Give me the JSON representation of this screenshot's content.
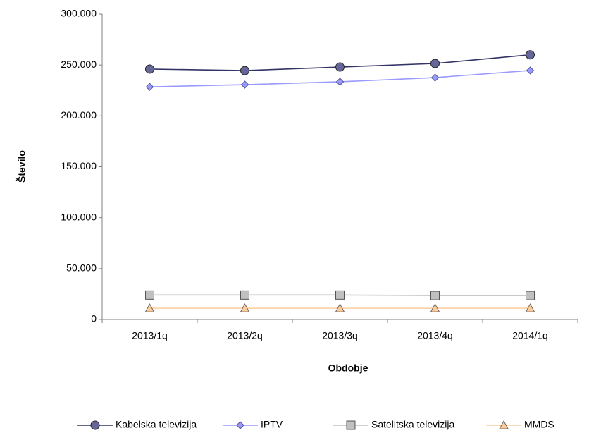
{
  "chart_data": {
    "type": "line",
    "y_label": "Število",
    "x_label": "Obdobje",
    "categories": [
      "2013/1q",
      "2013/2q",
      "2013/3q",
      "2013/4q",
      "2014/1q"
    ],
    "series": [
      {
        "name": "Kabelska televizija",
        "color": "#333366",
        "marker": "circle",
        "marker_color": "#666699",
        "values": [
          246000,
          244500,
          248000,
          251500,
          260000
        ]
      },
      {
        "name": "IPTV",
        "color": "#9999ff",
        "marker": "diamond",
        "marker_color": "#9999ff",
        "values": [
          228500,
          230700,
          233500,
          237600,
          244600
        ]
      },
      {
        "name": "Satelitska televizija",
        "color": "#c0c0c0",
        "marker": "square",
        "marker_color": "#c0c0c0",
        "values": [
          24000,
          24000,
          24000,
          23500,
          23500
        ]
      },
      {
        "name": "MMDS",
        "color": "#ffcc99",
        "marker": "triangle",
        "marker_color": "#ffcc99",
        "values": [
          11000,
          11000,
          11000,
          11000,
          11000
        ]
      }
    ],
    "ylim": [
      0,
      300000
    ],
    "yticks": [
      0,
      {
        "value": 50000,
        "label": "50.000"
      },
      {
        "value": 100000,
        "label": "100.000"
      },
      {
        "value": 150000,
        "label": "150.000"
      },
      {
        "value": 200000,
        "label": "200.000"
      },
      {
        "value": 250000,
        "label": "250.000"
      },
      {
        "value": 300000,
        "label": "300.000"
      }
    ],
    "grid": false,
    "legend": "bottom"
  }
}
